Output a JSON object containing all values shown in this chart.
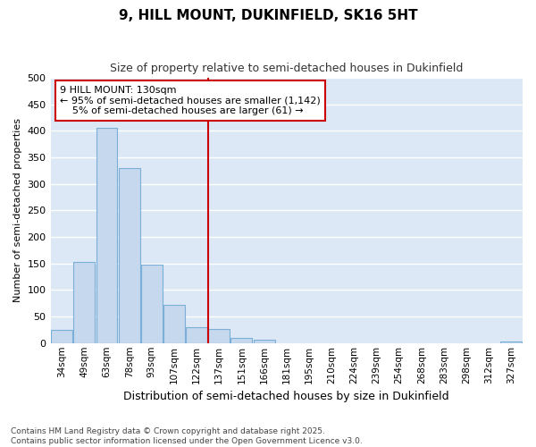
{
  "title": "9, HILL MOUNT, DUKINFIELD, SK16 5HT",
  "subtitle": "Size of property relative to semi-detached houses in Dukinfield",
  "xlabel": "Distribution of semi-detached houses by size in Dukinfield",
  "ylabel": "Number of semi-detached properties",
  "footer": "Contains HM Land Registry data © Crown copyright and database right 2025.\nContains public sector information licensed under the Open Government Licence v3.0.",
  "bins": [
    "34sqm",
    "49sqm",
    "63sqm",
    "78sqm",
    "93sqm",
    "107sqm",
    "122sqm",
    "137sqm",
    "151sqm",
    "166sqm",
    "181sqm",
    "195sqm",
    "210sqm",
    "224sqm",
    "239sqm",
    "254sqm",
    "268sqm",
    "283sqm",
    "298sqm",
    "312sqm",
    "327sqm"
  ],
  "values": [
    25,
    153,
    405,
    330,
    147,
    72,
    30,
    27,
    9,
    6,
    0,
    0,
    0,
    0,
    0,
    0,
    0,
    0,
    0,
    0,
    3
  ],
  "bar_color": "#c5d8ee",
  "bar_edge_color": "#7ab0d8",
  "plot_bg_color": "#dce8f5",
  "fig_bg_color": "#ffffff",
  "grid_color": "#ffffff",
  "vline_color": "#cc0000",
  "vline_x": 6.5,
  "annotation_text_line1": "9 HILL MOUNT: 130sqm",
  "annotation_text_line2": "← 95% of semi-detached houses are smaller (1,142)",
  "annotation_text_line3": "    5% of semi-detached houses are larger (61) →",
  "annotation_box_color": "#cc0000",
  "ylim": [
    0,
    500
  ],
  "yticks": [
    0,
    50,
    100,
    150,
    200,
    250,
    300,
    350,
    400,
    450,
    500
  ],
  "title_fontsize": 11,
  "subtitle_fontsize": 9,
  "xlabel_fontsize": 9,
  "ylabel_fontsize": 8,
  "xtick_fontsize": 7.5,
  "ytick_fontsize": 8,
  "annot_fontsize": 8,
  "footer_fontsize": 6.5
}
